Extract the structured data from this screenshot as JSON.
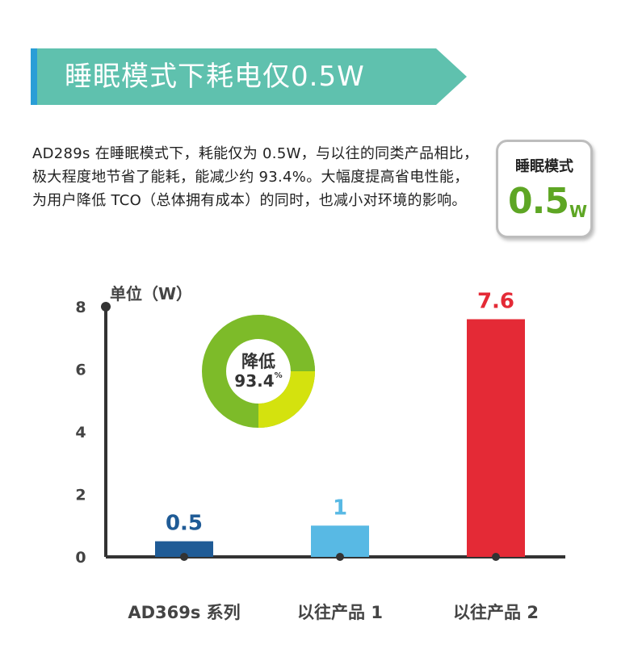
{
  "banner": {
    "title": "睡眠模式下耗电仅0.5W"
  },
  "intro": {
    "text": "AD289s 在睡眠模式下，耗能仅为 0.5W，与以往的同类产品相比，极大程度地节省了能耗，能减少约 93.4%。大幅度提高省电性能，为用户降低 TCO（总体拥有成本）的同时，也减小对环境的影响。"
  },
  "badge": {
    "label": "睡眠模式",
    "value": "0.5",
    "unit": "W"
  },
  "donut": {
    "label": "降低",
    "value": "93.4",
    "unit": "%"
  },
  "colors": {
    "banner": "#5fc1ae",
    "banner_stripe": "#2a9ed6",
    "green": "#7dbb29",
    "yellow_green": "#d4e20e",
    "axis": "#333333"
  },
  "chart_data": {
    "type": "bar",
    "ylabel": "单位（W）",
    "ylim": [
      0,
      8
    ],
    "yticks": [
      "0",
      "2",
      "4",
      "6",
      "8"
    ],
    "categories": [
      "AD369s 系列",
      "以往产品 1",
      "以往产品 2"
    ],
    "values": [
      0.5,
      1,
      7.6
    ],
    "value_labels": [
      "0.5",
      "1",
      "7.6"
    ],
    "bar_colors": [
      "#1f5b96",
      "#58b9e4",
      "#e42a36"
    ],
    "label_colors": [
      "#1f5b96",
      "#58b9e4",
      "#e42a36"
    ]
  }
}
